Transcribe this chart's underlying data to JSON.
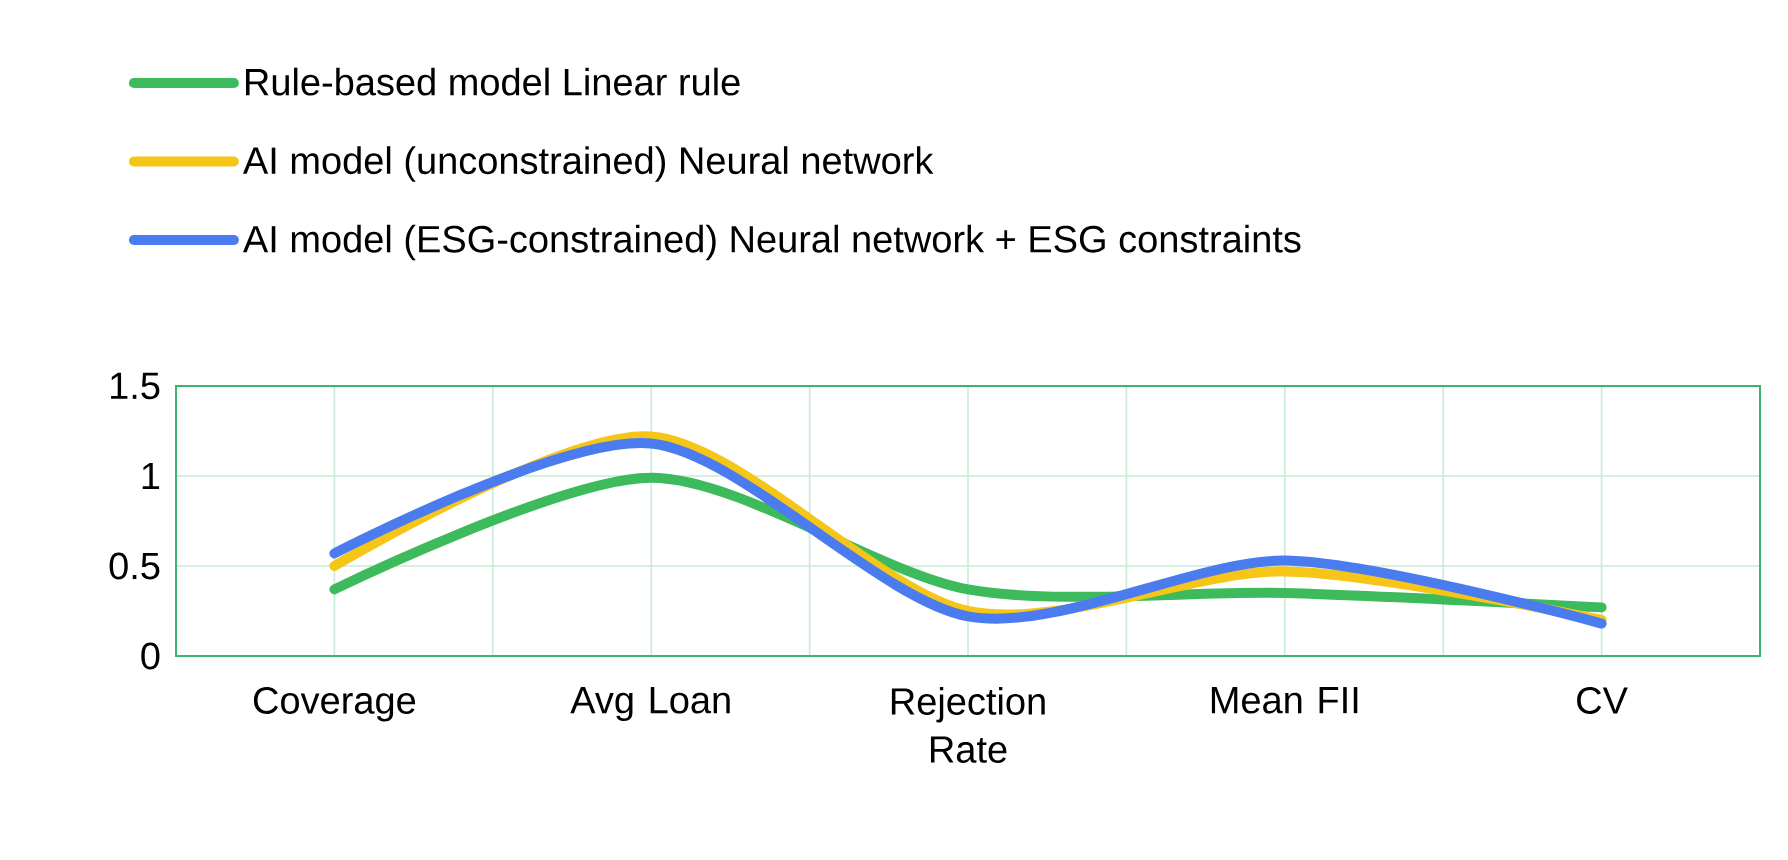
{
  "chart_data": {
    "type": "line",
    "categories": [
      "Coverage",
      "Avg Loan",
      "Rejection Rate",
      "Mean FII",
      "CV"
    ],
    "series": [
      {
        "name": "Rule-based model Linear rule",
        "color": "#3dbb5c",
        "values": [
          0.37,
          0.99,
          0.37,
          0.35,
          0.27
        ]
      },
      {
        "name": "AI model (unconstrained) Neural network",
        "color": "#f5c518",
        "values": [
          0.5,
          1.22,
          0.25,
          0.47,
          0.2
        ]
      },
      {
        "name": "AI model (ESG-constrained) Neural network + ESG constraints",
        "color": "#4a7cf0",
        "values": [
          0.57,
          1.18,
          0.22,
          0.53,
          0.18
        ]
      }
    ],
    "ylim": [
      0,
      1.5
    ],
    "yticks": [
      0,
      0.5,
      1,
      1.5
    ],
    "grid": true,
    "legend": "top left"
  }
}
